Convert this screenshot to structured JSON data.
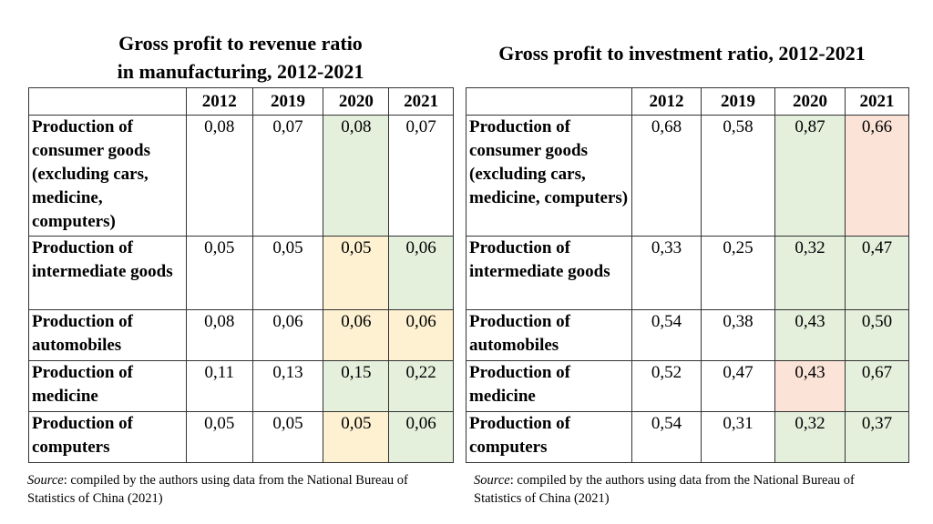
{
  "left": {
    "title_line1": "Gross profit to revenue ratio",
    "title_line2": "in manufacturing, 2012-2021",
    "years": [
      "2012",
      "2019",
      "2020",
      "2021"
    ],
    "rows": [
      {
        "label": "Production of consumer goods (excluding cars, medicine, computers)",
        "values": [
          "0,08",
          "0,07",
          "0,08",
          "0,07"
        ],
        "highlight": [
          "none",
          "none",
          "green",
          "none"
        ]
      },
      {
        "label": "Production of intermediate goods",
        "values": [
          "0,05",
          "0,05",
          "0,05",
          "0,06"
        ],
        "highlight": [
          "none",
          "none",
          "yellow",
          "green"
        ]
      },
      {
        "label": "Production of automobiles",
        "values": [
          "0,08",
          "0,06",
          "0,06",
          "0,06"
        ],
        "highlight": [
          "none",
          "none",
          "yellow",
          "yellow"
        ]
      },
      {
        "label": "Production of medicine",
        "values": [
          "0,11",
          "0,13",
          "0,15",
          "0,22"
        ],
        "highlight": [
          "none",
          "none",
          "green",
          "green"
        ]
      },
      {
        "label": "Production of computers",
        "values": [
          "0,05",
          "0,05",
          "0,05",
          "0,06"
        ],
        "highlight": [
          "none",
          "none",
          "yellow",
          "green"
        ]
      }
    ],
    "source_label": "Source",
    "source_text": ": compiled by the authors using data from the National Bureau of Statistics of China (2021)"
  },
  "right": {
    "title": "Gross profit to investment ratio, 2012-2021",
    "years": [
      "2012",
      "2019",
      "2020",
      "2021"
    ],
    "rows": [
      {
        "label": "Production of consumer goods (excluding cars, medicine, computers)",
        "values": [
          "0,68",
          "0,58",
          "0,87",
          "0,66"
        ],
        "highlight": [
          "none",
          "none",
          "green",
          "pink"
        ]
      },
      {
        "label": "Production of intermediate goods",
        "values": [
          "0,33",
          "0,25",
          "0,32",
          "0,47"
        ],
        "highlight": [
          "none",
          "none",
          "green",
          "green"
        ]
      },
      {
        "label": "Production of automobiles",
        "values": [
          "0,54",
          "0,38",
          "0,43",
          "0,50"
        ],
        "highlight": [
          "none",
          "none",
          "green",
          "green"
        ]
      },
      {
        "label": "Production of medicine",
        "values": [
          "0,52",
          "0,47",
          "0,43",
          "0,67"
        ],
        "highlight": [
          "none",
          "none",
          "pink",
          "green"
        ]
      },
      {
        "label": "Production of computers",
        "values": [
          "0,54",
          "0,31",
          "0,32",
          "0,37"
        ],
        "highlight": [
          "none",
          "none",
          "green",
          "green"
        ]
      }
    ],
    "source_label": "Source",
    "source_text": ": compiled by the authors using data from the National Bureau of Statistics of China (2021)"
  },
  "colors": {
    "green": "#e4efdc",
    "yellow": "#fdf1d1",
    "pink": "#fbe3d8"
  }
}
